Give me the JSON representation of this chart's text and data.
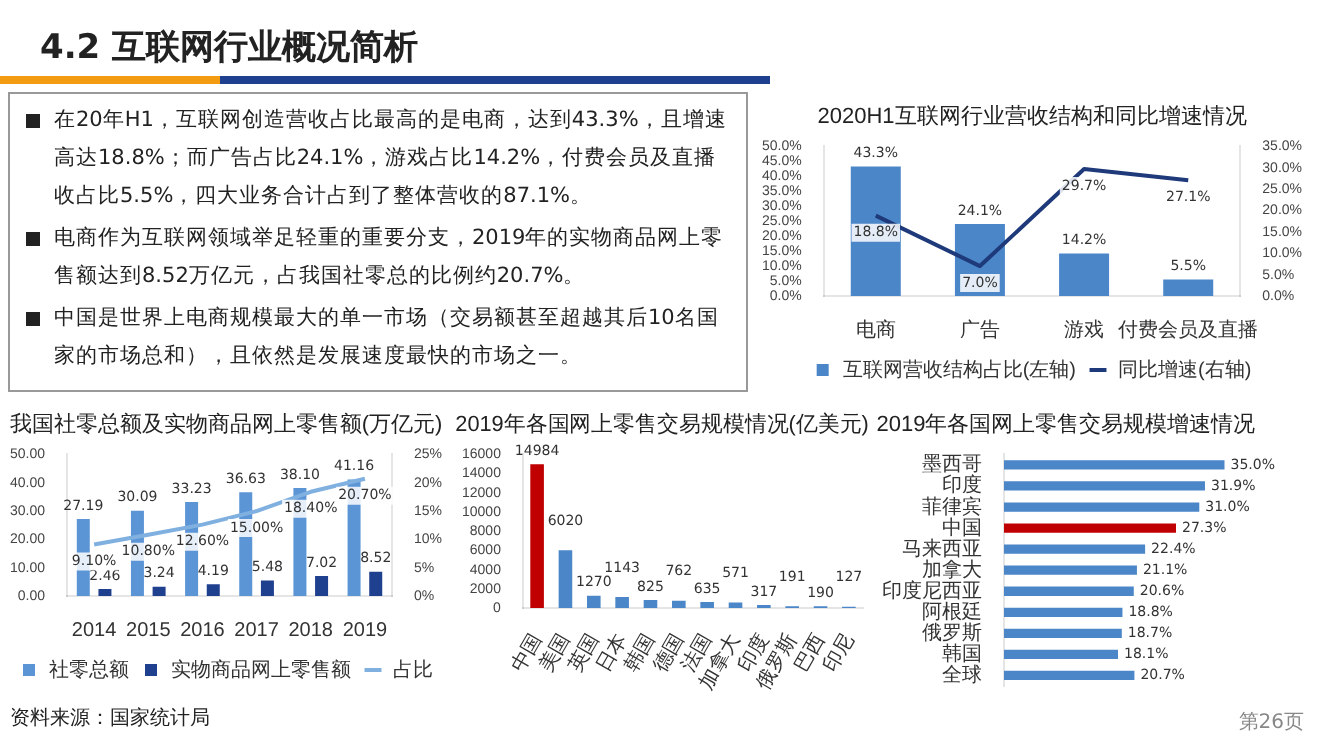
{
  "chart_data": [
    {
      "type": "other",
      "title": "4.2 互联网行业概况简析",
      "annotations": [
        "在20年H1，互联网创造营收占比最高的是电商，达到43.3%，且增速高达18.8%；而广告占比24.1%，游戏占比14.2%，付费会员及直播收占比5.5%，四大业务合计占到了整体营收的87.1%。",
        "电商作为互联网领域举足轻重的重要分支，2019年的实物商品网上零售额达到8.52万亿元，占我国社零总的比例约20.7%。",
        "中国是世界上电商规模最大的单一市场（交易额甚至超越其后10名国家的市场总和），且依然是发展速度最快的市场之一。",
        "资料来源：国家统计局",
        "第26页"
      ]
    },
    {
      "type": "bar",
      "title": "2020H1互联网行业营收结构和同比增速情况",
      "categories": [
        "电商",
        "广告",
        "游戏",
        "付费会员及直播"
      ],
      "series": [
        {
          "name": "互联网营收结构占比(左轴)",
          "color": "#4a86c8",
          "values": [
            43.3,
            24.1,
            14.2,
            5.5
          ],
          "value_labels": [
            "43.3%",
            "24.1%",
            "14.2%",
            "5.5%"
          ]
        },
        {
          "name": "同比增速(右轴)",
          "type": "line",
          "axis": "y2",
          "color": "#1f3a7a",
          "values": [
            18.8,
            7.0,
            29.7,
            27.1
          ],
          "value_labels": [
            "18.8%",
            "7.0%",
            "29.7%",
            "27.1%"
          ]
        }
      ],
      "ylim": [
        0,
        50
      ],
      "yticks": [
        {
          "value": 0,
          "label": "0.0%"
        },
        {
          "value": 5,
          "label": "5.0%"
        },
        {
          "value": 10,
          "label": "10.0%"
        },
        {
          "value": 15,
          "label": "15.0%"
        },
        {
          "value": 20,
          "label": "20.0%"
        },
        {
          "value": 25,
          "label": "25.0%"
        },
        {
          "value": 30,
          "label": "30.0%"
        },
        {
          "value": 35,
          "label": "35.0%"
        },
        {
          "value": 40,
          "label": "40.0%"
        },
        {
          "value": 45,
          "label": "45.0%"
        },
        {
          "value": 50,
          "label": "50.0%"
        }
      ],
      "y2lim": [
        0,
        35
      ],
      "y2ticks": [
        {
          "value": 0,
          "label": "0.0%"
        },
        {
          "value": 5,
          "label": "5.0%"
        },
        {
          "value": 10,
          "label": "10.0%"
        },
        {
          "value": 15,
          "label": "15.0%"
        },
        {
          "value": 20,
          "label": "20.0%"
        },
        {
          "value": 25,
          "label": "25.0%"
        },
        {
          "value": 30,
          "label": "30.0%"
        },
        {
          "value": 35,
          "label": "35.0%"
        }
      ],
      "legend": "bottom",
      "marker": "none"
    },
    {
      "type": "bar",
      "title": "我国社零总额及实物商品网上零售额(万亿元)",
      "categories": [
        "2014",
        "2015",
        "2016",
        "2017",
        "2018",
        "2019"
      ],
      "series": [
        {
          "name": "社零总额",
          "color": "#5b95d6",
          "values": [
            27.19,
            30.09,
            33.23,
            36.63,
            38.1,
            41.16
          ],
          "value_labels": [
            "27.19",
            "30.09",
            "33.23",
            "36.63",
            "38.10",
            "41.16"
          ]
        },
        {
          "name": "实物商品网上零售额",
          "color": "#1f3f8f",
          "values": [
            2.46,
            3.24,
            4.19,
            5.48,
            7.02,
            8.52
          ],
          "value_labels": [
            "2.46",
            "3.24",
            "4.19",
            "5.48",
            "7.02",
            "8.52"
          ]
        },
        {
          "name": "占比",
          "type": "line",
          "axis": "y2",
          "color": "#7fb0e0",
          "values": [
            9.1,
            10.8,
            12.6,
            15.0,
            18.4,
            20.7
          ],
          "value_labels": [
            "9.10%",
            "10.80%",
            "12.60%",
            "15.00%",
            "18.40%",
            "20.70%"
          ]
        }
      ],
      "ylim": [
        0,
        50
      ],
      "yticks": [
        {
          "value": 0,
          "label": "0.00"
        },
        {
          "value": 10,
          "label": "10.00"
        },
        {
          "value": 20,
          "label": "20.00"
        },
        {
          "value": 30,
          "label": "30.00"
        },
        {
          "value": 40,
          "label": "40.00"
        },
        {
          "value": 50,
          "label": "50.00"
        }
      ],
      "y2lim": [
        0,
        25
      ],
      "y2ticks": [
        {
          "value": 0,
          "label": "0%"
        },
        {
          "value": 5,
          "label": "5%"
        },
        {
          "value": 10,
          "label": "10%"
        },
        {
          "value": 15,
          "label": "15%"
        },
        {
          "value": 20,
          "label": "20%"
        },
        {
          "value": 25,
          "label": "25%"
        }
      ],
      "legend": "bottom",
      "marker": "none"
    },
    {
      "type": "bar",
      "title": "2019年各国网上零售交易规模情况(亿美元)",
      "categories": [
        "中国",
        "美国",
        "英国",
        "日本",
        "韩国",
        "德国",
        "法国",
        "加拿大",
        "印度",
        "俄罗斯",
        "巴西",
        "印尼"
      ],
      "values": [
        14984,
        6020,
        1270,
        1143,
        825,
        762,
        635,
        571,
        317,
        191,
        190,
        127
      ],
      "colors": [
        "#c00000",
        "#4a86c8",
        "#4a86c8",
        "#4a86c8",
        "#4a86c8",
        "#4a86c8",
        "#4a86c8",
        "#4a86c8",
        "#4a86c8",
        "#4a86c8",
        "#4a86c8",
        "#4a86c8"
      ],
      "data_labels": true,
      "ylim": [
        0,
        16000
      ],
      "yticks": [
        0,
        2000,
        4000,
        6000,
        8000,
        10000,
        12000,
        14000,
        16000
      ]
    },
    {
      "type": "bar",
      "orientation": "horizontal",
      "title": "2019年各国网上零售交易规模增速情况",
      "categories": [
        "墨西哥",
        "印度",
        "菲律宾",
        "中国",
        "马来西亚",
        "加拿大",
        "印度尼西亚",
        "阿根廷",
        "俄罗斯",
        "韩国",
        "全球"
      ],
      "values": [
        35.0,
        31.9,
        31.0,
        27.3,
        22.4,
        21.1,
        20.6,
        18.8,
        18.7,
        18.1,
        20.7
      ],
      "value_labels": [
        "35.0%",
        "31.9%",
        "31.0%",
        "27.3%",
        "22.4%",
        "21.1%",
        "20.6%",
        "18.8%",
        "18.7%",
        "18.1%",
        "20.7%"
      ],
      "colors": [
        "#4a86c8",
        "#4a86c8",
        "#4a86c8",
        "#c00000",
        "#4a86c8",
        "#4a86c8",
        "#4a86c8",
        "#4a86c8",
        "#4a86c8",
        "#4a86c8",
        "#4a86c8"
      ],
      "tick_labels": "y"
    }
  ]
}
